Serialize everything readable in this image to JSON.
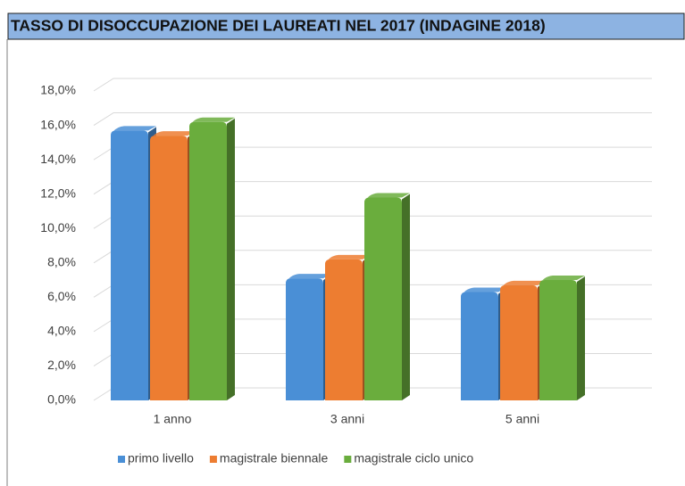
{
  "chart_data": {
    "type": "bar",
    "title": "TASSO DI DISOCCUPAZIONE DEI LAUREATI NEL 2017 (INDAGINE 2018)",
    "categories": [
      "1 anno",
      "3 anni",
      "5 anni"
    ],
    "series": [
      {
        "name": "primo livello",
        "color": "#4a8fd6",
        "values": [
          15.7,
          7.1,
          6.3
        ]
      },
      {
        "name": "magistrale biennale",
        "color": "#ed7d31",
        "values": [
          15.4,
          8.2,
          6.7
        ]
      },
      {
        "name": "magistrale ciclo unico",
        "color": "#6aad3d",
        "values": [
          16.2,
          11.8,
          7.0
        ]
      }
    ],
    "ylim": [
      0,
      18
    ],
    "yticks": [
      {
        "value": 0,
        "label": "0,0%"
      },
      {
        "value": 2,
        "label": "2,0%"
      },
      {
        "value": 4,
        "label": "4,0%"
      },
      {
        "value": 6,
        "label": "6,0%"
      },
      {
        "value": 8,
        "label": "8,0%"
      },
      {
        "value": 10,
        "label": "10,0%"
      },
      {
        "value": 12,
        "label": "12,0%"
      },
      {
        "value": 14,
        "label": "14,0%"
      },
      {
        "value": 16,
        "label": "16,0%"
      },
      {
        "value": 18,
        "label": "18,0%"
      }
    ],
    "grid": true,
    "legend": "bottom"
  }
}
